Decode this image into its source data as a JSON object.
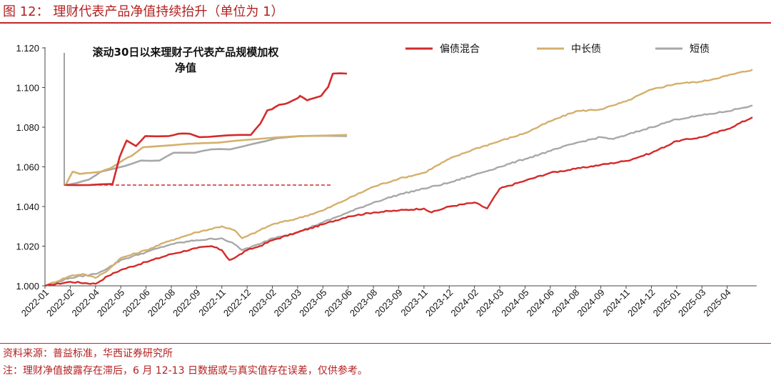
{
  "header": {
    "title": "图 12：  理财代表产品净值持续抬升（单位为 1）"
  },
  "footer": {
    "source": "资料来源：普益标准，华西证券研究所",
    "note": "注：理财净值披露存在滞后，6 月 12-13 日数据或与真实值存在误差，仅供参考。"
  },
  "colors": {
    "hybrid": "#d42a2a",
    "medium_long": "#d4b06c",
    "short": "#a8a8a8",
    "rule": "#c0282a"
  },
  "chart_data": [
    {
      "type": "line",
      "title": "",
      "xlabel": "",
      "ylabel": "",
      "ylim": [
        1.0,
        1.12
      ],
      "yticks": [
        "1.000",
        "1.020",
        "1.040",
        "1.060",
        "1.080",
        "1.100",
        "1.120"
      ],
      "categories": [
        "2022-01",
        "2022-02",
        "2022-04",
        "2022-05",
        "2022-06",
        "2022-08",
        "2022-09",
        "2022-11",
        "2022-12",
        "2023-02",
        "2023-03",
        "2023-05",
        "2023-06",
        "2023-08",
        "2023-09",
        "2023-11",
        "2023-12",
        "2024-02",
        "2024-03",
        "2024-05",
        "2024-06",
        "2024-08",
        "2024-09",
        "2024-11",
        "2024-12",
        "2025-01",
        "2025-03",
        "2025-04"
      ],
      "legend_position": "top-right",
      "grid": false,
      "series": [
        {
          "name": "偏债混合",
          "color_key": "hybrid",
          "points": [
            [
              0,
              1.0
            ],
            [
              1.0,
              1.002
            ],
            [
              2.0,
              1.001
            ],
            [
              2.5,
              1.005
            ],
            [
              3.0,
              1.008
            ],
            [
              4.0,
              1.012
            ],
            [
              5.0,
              1.016
            ],
            [
              6.0,
              1.019
            ],
            [
              6.6,
              1.02
            ],
            [
              7.0,
              1.018
            ],
            [
              7.3,
              1.013
            ],
            [
              7.5,
              1.014
            ],
            [
              8.0,
              1.018
            ],
            [
              8.5,
              1.02
            ],
            [
              9.0,
              1.023
            ],
            [
              10.0,
              1.027
            ],
            [
              11.0,
              1.031
            ],
            [
              12.0,
              1.035
            ],
            [
              13.0,
              1.037
            ],
            [
              14.0,
              1.038
            ],
            [
              15.0,
              1.039
            ],
            [
              15.3,
              1.037
            ],
            [
              16.0,
              1.04
            ],
            [
              17.0,
              1.042
            ],
            [
              17.5,
              1.039
            ],
            [
              18.0,
              1.049
            ],
            [
              19.0,
              1.053
            ],
            [
              20.0,
              1.057
            ],
            [
              21.0,
              1.059
            ],
            [
              22.0,
              1.061
            ],
            [
              23.0,
              1.063
            ],
            [
              24.0,
              1.067
            ],
            [
              25.0,
              1.073
            ],
            [
              26.0,
              1.075
            ],
            [
              27.0,
              1.079
            ],
            [
              28.0,
              1.085
            ]
          ]
        },
        {
          "name": "中长债",
          "color_key": "medium_long",
          "points": [
            [
              0,
              1.0
            ],
            [
              1.0,
              1.005
            ],
            [
              1.5,
              1.006
            ],
            [
              2.0,
              1.004
            ],
            [
              2.5,
              1.008
            ],
            [
              3.0,
              1.014
            ],
            [
              4.0,
              1.018
            ],
            [
              5.0,
              1.023
            ],
            [
              6.0,
              1.027
            ],
            [
              7.0,
              1.03
            ],
            [
              7.5,
              1.028
            ],
            [
              7.8,
              1.024
            ],
            [
              8.0,
              1.025
            ],
            [
              8.5,
              1.028
            ],
            [
              9.0,
              1.031
            ],
            [
              10.0,
              1.034
            ],
            [
              11.0,
              1.038
            ],
            [
              12.0,
              1.044
            ],
            [
              13.0,
              1.05
            ],
            [
              14.0,
              1.054
            ],
            [
              15.0,
              1.057
            ],
            [
              16.0,
              1.064
            ],
            [
              17.0,
              1.069
            ],
            [
              18.0,
              1.073
            ],
            [
              19.0,
              1.077
            ],
            [
              20.0,
              1.083
            ],
            [
              21.0,
              1.088
            ],
            [
              22.0,
              1.089
            ],
            [
              22.5,
              1.091
            ],
            [
              23.0,
              1.093
            ],
            [
              24.0,
              1.099
            ],
            [
              25.0,
              1.102
            ],
            [
              26.0,
              1.103
            ],
            [
              27.0,
              1.106
            ],
            [
              28.0,
              1.109
            ]
          ]
        },
        {
          "name": "短债",
          "color_key": "short",
          "points": [
            [
              0,
              1.0
            ],
            [
              1.0,
              1.004
            ],
            [
              2.0,
              1.006
            ],
            [
              2.5,
              1.009
            ],
            [
              3.0,
              1.013
            ],
            [
              4.0,
              1.017
            ],
            [
              5.0,
              1.021
            ],
            [
              6.0,
              1.023
            ],
            [
              7.0,
              1.024
            ],
            [
              7.5,
              1.021
            ],
            [
              7.8,
              1.018
            ],
            [
              8.0,
              1.019
            ],
            [
              8.5,
              1.021
            ],
            [
              9.0,
              1.024
            ],
            [
              10.0,
              1.027
            ],
            [
              11.0,
              1.032
            ],
            [
              12.0,
              1.037
            ],
            [
              13.0,
              1.042
            ],
            [
              14.0,
              1.046
            ],
            [
              15.0,
              1.049
            ],
            [
              16.0,
              1.052
            ],
            [
              17.0,
              1.056
            ],
            [
              18.0,
              1.06
            ],
            [
              19.0,
              1.064
            ],
            [
              20.0,
              1.068
            ],
            [
              21.0,
              1.072
            ],
            [
              22.0,
              1.075
            ],
            [
              22.5,
              1.074
            ],
            [
              23.0,
              1.076
            ],
            [
              24.0,
              1.08
            ],
            [
              25.0,
              1.084
            ],
            [
              26.0,
              1.086
            ],
            [
              27.0,
              1.088
            ],
            [
              28.0,
              1.091
            ]
          ]
        }
      ]
    },
    {
      "type": "line",
      "title": "滚动30日以来理财子代表产品规模加权净值",
      "title_lines": [
        "滚动30日以来理财子代表产品规模加权",
        "净值"
      ],
      "grid": false,
      "series": [
        {
          "name": "偏债混合",
          "color_key": "hybrid",
          "points": [
            [
              0,
              0.0
            ],
            [
              0.1,
              0.0
            ],
            [
              0.2,
              0.01
            ],
            [
              0.23,
              0.25
            ],
            [
              0.26,
              0.4
            ],
            [
              0.3,
              0.35
            ],
            [
              0.34,
              0.44
            ],
            [
              0.44,
              0.44
            ],
            [
              0.48,
              0.46
            ],
            [
              0.53,
              0.46
            ],
            [
              0.57,
              0.43
            ],
            [
              0.65,
              0.44
            ],
            [
              0.74,
              0.45
            ],
            [
              0.79,
              0.45
            ],
            [
              0.83,
              0.55
            ],
            [
              0.86,
              0.67
            ],
            [
              0.88,
              0.68
            ],
            [
              0.91,
              0.72
            ],
            [
              0.94,
              0.73
            ],
            [
              0.97,
              0.76
            ],
            [
              0.99,
              0.78
            ],
            [
              1.0,
              0.8
            ],
            [
              1.0,
              0.8
            ],
            [
              1.03,
              0.76
            ],
            [
              1.06,
              0.78
            ],
            [
              1.09,
              0.8
            ],
            [
              1.12,
              0.88
            ],
            [
              1.14,
              1.0
            ],
            [
              1.2,
              1.0
            ]
          ]
        },
        {
          "name": "中长债",
          "color_key": "medium_long",
          "points": [
            [
              0,
              0.0
            ],
            [
              0.03,
              0.12
            ],
            [
              0.06,
              0.1
            ],
            [
              0.11,
              0.11
            ],
            [
              0.15,
              0.12
            ],
            [
              0.19,
              0.15
            ],
            [
              0.25,
              0.23
            ],
            [
              0.28,
              0.26
            ],
            [
              0.33,
              0.34
            ],
            [
              0.4,
              0.35
            ],
            [
              0.52,
              0.37
            ],
            [
              0.65,
              0.38
            ],
            [
              0.8,
              0.41
            ],
            [
              1.0,
              0.44
            ],
            [
              1.2,
              0.45
            ]
          ]
        },
        {
          "name": "短债",
          "color_key": "short",
          "points": [
            [
              0,
              0.0
            ],
            [
              0.05,
              0.02
            ],
            [
              0.1,
              0.05
            ],
            [
              0.15,
              0.12
            ],
            [
              0.25,
              0.17
            ],
            [
              0.32,
              0.22
            ],
            [
              0.4,
              0.22
            ],
            [
              0.46,
              0.29
            ],
            [
              0.55,
              0.29
            ],
            [
              0.62,
              0.32
            ],
            [
              0.7,
              0.32
            ],
            [
              0.8,
              0.37
            ],
            [
              0.9,
              0.42
            ],
            [
              1.0,
              0.44
            ],
            [
              1.2,
              0.44
            ]
          ]
        }
      ]
    }
  ]
}
